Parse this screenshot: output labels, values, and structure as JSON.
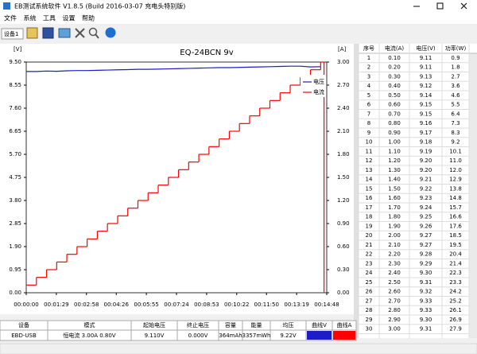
{
  "window": {
    "title": "EB测试系统软件 V1.8.5 (Build 2016-03-07 充电头特别版)",
    "menu": [
      "文件",
      "系统",
      "工具",
      "设置",
      "帮助"
    ],
    "device": "设备1"
  },
  "chart_data": {
    "type": "line",
    "title": "EQ-24BCN 9v",
    "y_label": "[V]",
    "y2_label": "[A]",
    "x": [
      0,
      30,
      60,
      90,
      120,
      150,
      180,
      210,
      240,
      270,
      300,
      330,
      360,
      390,
      420,
      450,
      480,
      510,
      540,
      570,
      600,
      630,
      660,
      690,
      720,
      750,
      780,
      810,
      840,
      870,
      880
    ],
    "xlim": [
      0,
      888
    ],
    "xticks": [
      {
        "value": 0,
        "label": "00:00:00"
      },
      {
        "value": 89,
        "label": "00:01:29"
      },
      {
        "value": 178,
        "label": "00:02:58"
      },
      {
        "value": 266,
        "label": "00:04:26"
      },
      {
        "value": 355,
        "label": "00:05:55"
      },
      {
        "value": 444,
        "label": "00:07:24"
      },
      {
        "value": 533,
        "label": "00:08:53"
      },
      {
        "value": 622,
        "label": "00:10:22"
      },
      {
        "value": 710,
        "label": "00:11:50"
      },
      {
        "value": 799,
        "label": "00:13:19"
      },
      {
        "value": 888,
        "label": "00:14:48"
      }
    ],
    "ylim": [
      0,
      9.5
    ],
    "yticks": [
      {
        "value": 0,
        "label": "0.00"
      },
      0.95,
      {
        "value": 1.9,
        "label": "1.90"
      },
      2.85,
      {
        "value": 3.8,
        "label": "3.80"
      },
      4.75,
      {
        "value": 5.7,
        "label": "5.70"
      },
      6.65,
      {
        "value": 7.6,
        "label": "7.60"
      },
      8.55,
      {
        "value": 9.5,
        "label": "9.50"
      }
    ],
    "y2lim": [
      0,
      3
    ],
    "y2ticks": [
      {
        "value": 0,
        "label": "0.00"
      },
      {
        "value": 0.3,
        "label": "0.30"
      },
      {
        "value": 0.6,
        "label": "0.60"
      },
      {
        "value": 0.9,
        "label": "0.90"
      },
      {
        "value": 1.2,
        "label": "1.20"
      },
      {
        "value": 1.5,
        "label": "1.50"
      },
      {
        "value": 1.8,
        "label": "1.80"
      },
      {
        "value": 2.1,
        "label": "2.10"
      },
      {
        "value": 2.4,
        "label": "2.40"
      },
      {
        "value": 2.7,
        "label": "2.70"
      },
      {
        "value": 3,
        "label": "3.00"
      }
    ],
    "grid": false,
    "series": [
      {
        "name": "电压",
        "color": "#1c1cc8",
        "values": [
          9.11,
          9.11,
          9.13,
          9.12,
          9.14,
          9.15,
          9.15,
          9.16,
          9.17,
          9.18,
          9.19,
          9.2,
          9.2,
          9.21,
          9.22,
          9.23,
          9.24,
          9.25,
          9.26,
          9.27,
          9.27,
          9.28,
          9.29,
          9.3,
          9.31,
          9.32,
          9.33,
          9.33,
          9.3,
          9.31,
          null
        ]
      },
      {
        "name": "电流",
        "color": "#ff0000",
        "axis": "y2",
        "step": true,
        "values": [
          0.1,
          0.2,
          0.3,
          0.4,
          0.5,
          0.6,
          0.7,
          0.8,
          0.9,
          1.0,
          1.1,
          1.2,
          1.3,
          1.4,
          1.5,
          1.6,
          1.7,
          1.8,
          1.9,
          2.0,
          2.1,
          2.2,
          2.3,
          2.4,
          2.5,
          2.6,
          2.7,
          2.8,
          2.9,
          3.0,
          0
        ]
      }
    ]
  },
  "data_table": {
    "columns": [
      "序号",
      "电流(A)",
      "电压(V)",
      "功率(W)"
    ],
    "rows": [
      [
        "1",
        "0.10",
        "9.11",
        "0.9"
      ],
      [
        "2",
        "0.20",
        "9.11",
        "1.8"
      ],
      [
        "3",
        "0.30",
        "9.13",
        "2.7"
      ],
      [
        "4",
        "0.40",
        "9.12",
        "3.6"
      ],
      [
        "5",
        "0.50",
        "9.14",
        "4.6"
      ],
      [
        "6",
        "0.60",
        "9.15",
        "5.5"
      ],
      [
        "7",
        "0.70",
        "9.15",
        "6.4"
      ],
      [
        "8",
        "0.80",
        "9.16",
        "7.3"
      ],
      [
        "9",
        "0.90",
        "9.17",
        "8.3"
      ],
      [
        "10",
        "1.00",
        "9.18",
        "9.2"
      ],
      [
        "11",
        "1.10",
        "9.19",
        "10.1"
      ],
      [
        "12",
        "1.20",
        "9.20",
        "11.0"
      ],
      [
        "13",
        "1.30",
        "9.20",
        "12.0"
      ],
      [
        "14",
        "1.40",
        "9.21",
        "12.9"
      ],
      [
        "15",
        "1.50",
        "9.22",
        "13.8"
      ],
      [
        "16",
        "1.60",
        "9.23",
        "14.8"
      ],
      [
        "17",
        "1.70",
        "9.24",
        "15.7"
      ],
      [
        "18",
        "1.80",
        "9.25",
        "16.6"
      ],
      [
        "19",
        "1.90",
        "9.26",
        "17.6"
      ],
      [
        "20",
        "2.00",
        "9.27",
        "18.5"
      ],
      [
        "21",
        "2.10",
        "9.27",
        "19.5"
      ],
      [
        "22",
        "2.20",
        "9.28",
        "20.4"
      ],
      [
        "23",
        "2.30",
        "9.29",
        "21.4"
      ],
      [
        "24",
        "2.40",
        "9.30",
        "22.3"
      ],
      [
        "25",
        "2.50",
        "9.31",
        "23.3"
      ],
      [
        "26",
        "2.60",
        "9.32",
        "24.2"
      ],
      [
        "27",
        "2.70",
        "9.33",
        "25.2"
      ],
      [
        "28",
        "2.80",
        "9.33",
        "26.1"
      ],
      [
        "29",
        "2.90",
        "9.30",
        "26.9"
      ],
      [
        "30",
        "3.00",
        "9.31",
        "27.9"
      ]
    ]
  },
  "summary_table": {
    "columns": [
      "设备",
      "模式",
      "起始电压",
      "终止电压",
      "容量",
      "能量",
      "均压",
      "曲线V",
      "曲线A"
    ],
    "values": [
      "EBD-USB",
      "恒电流 3.00A 0.80V",
      "9.110V",
      "0.000V",
      "364mAh",
      "3357mWh",
      "9.22V"
    ]
  }
}
